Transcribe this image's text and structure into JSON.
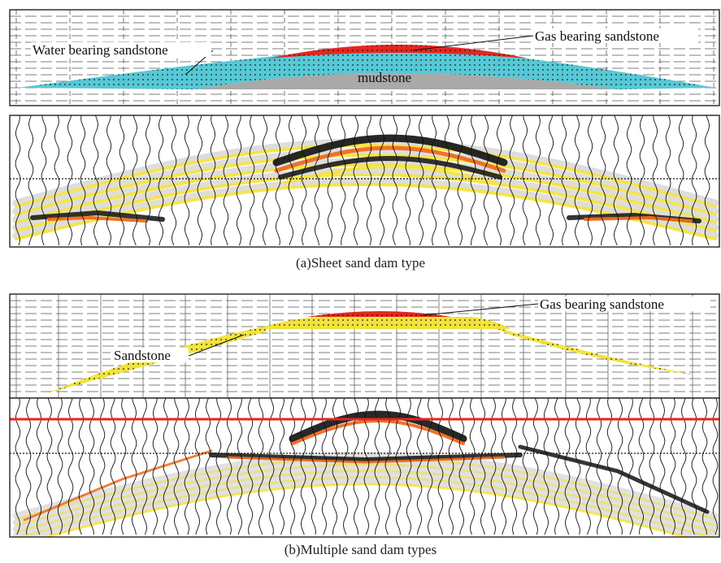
{
  "panel_a": {
    "caption": "(a)Sheet sand dam type",
    "labels": {
      "gas": "Gas bearing sandstone",
      "water": "Water bearing sandstone",
      "mud": "mudstone"
    }
  },
  "panel_b": {
    "caption": "(b)Multiple sand dam types",
    "labels": {
      "gas": "Gas bearing sandstone",
      "sand": "Sandstone"
    }
  },
  "colors": {
    "gas": "#e8251f",
    "water": "#55c9d6",
    "mud": "#a9a9a9",
    "sand": "#f2e33a",
    "seismic_hot": "#f06a1c",
    "seismic_yellow": "#f7e33c",
    "seismic_black": "#111111",
    "marker_line": "#e8251f"
  }
}
